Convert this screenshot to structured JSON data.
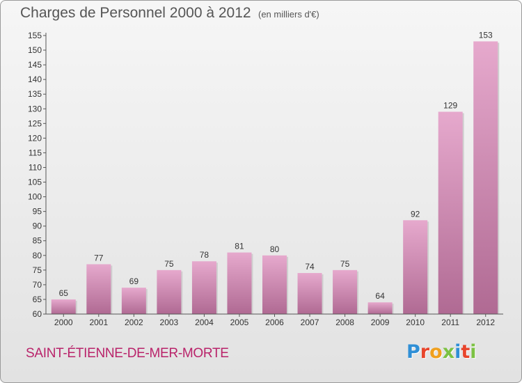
{
  "header": {
    "title": "Charges de Personnel 2000 à 2012",
    "subtitle": "(en milliers d'€)"
  },
  "footer": {
    "place": "SAINT-ÉTIENNE-DE-MER-MORTE",
    "logo_text": "Proxiti"
  },
  "colors": {
    "bar_top": "#e6a9cd",
    "bar_bottom": "#b06a93",
    "axis": "#555555",
    "place": "#b9236a",
    "logo_letters": [
      "#2f8fd6",
      "#e8452c",
      "#f0a01e",
      "#7cc243",
      "#2f8fd6",
      "#e8452c",
      "#7cc243"
    ]
  },
  "chart_data": {
    "type": "bar",
    "categories": [
      "2000",
      "2001",
      "2002",
      "2003",
      "2004",
      "2005",
      "2006",
      "2007",
      "2008",
      "2009",
      "2010",
      "2011",
      "2012"
    ],
    "values": [
      65,
      77,
      69,
      75,
      78,
      81,
      80,
      74,
      75,
      64,
      92,
      129,
      153
    ],
    "title": "Charges de Personnel 2000 à 2012",
    "subtitle": "(en milliers d'€)",
    "ylim": [
      60,
      155
    ],
    "yticks": [
      60,
      65,
      70,
      75,
      80,
      85,
      90,
      95,
      100,
      105,
      110,
      115,
      120,
      125,
      130,
      135,
      140,
      145,
      150,
      155
    ],
    "grid": false,
    "data_labels": true
  }
}
